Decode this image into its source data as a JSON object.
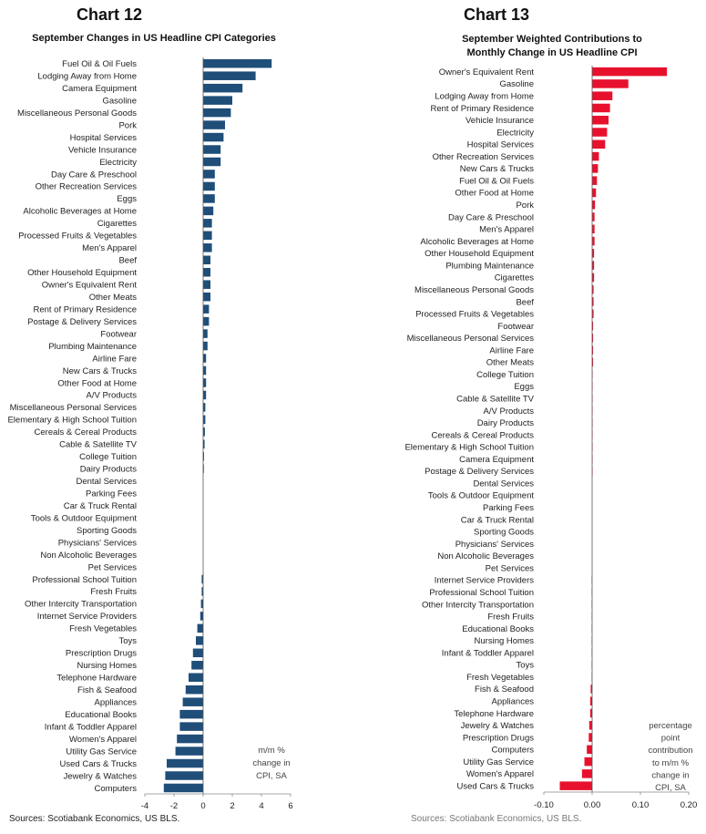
{
  "source": "Sources: Scotiabank Economics, US BLS.",
  "chart_data": [
    {
      "type": "bar",
      "orientation": "horizontal",
      "heading": "Chart 12",
      "title": "September Changes in US Headline CPI Categories",
      "unit_note": [
        "m/m %",
        "change in",
        "CPI, SA"
      ],
      "xlim": [
        -4,
        6
      ],
      "xticks": [
        -4,
        -2,
        0,
        2,
        4,
        6
      ],
      "bar_color": "#1f4e79",
      "categories": [
        "Fuel Oil & Oil Fuels",
        "Lodging Away from Home",
        "Camera Equipment",
        "Gasoline",
        "Miscellaneous Personal Goods",
        "Pork",
        "Hospital Services",
        "Vehicle Insurance",
        "Electricity",
        "Day Care & Preschool",
        "Other Recreation Services",
        "Eggs",
        "Alcoholic Beverages at Home",
        "Cigarettes",
        "Processed Fruits & Vegetables",
        "Men's Apparel",
        "Beef",
        "Other Household Equipment",
        "Owner's Equivalent Rent",
        "Other Meats",
        "Rent of Primary Residence",
        "Postage & Delivery Services",
        "Footwear",
        "Plumbing Maintenance",
        "Airline Fare",
        "New Cars & Trucks",
        "Other Food at Home",
        "A/V Products",
        "Miscellaneous Personal Services",
        "Elementary & High School Tuition",
        "Cereals & Cereal Products",
        "Cable & Satellite TV",
        "College Tuition",
        "Dairy Products",
        "Dental Services",
        "Parking Fees",
        "Car & Truck Rental",
        "Tools & Outdoor Equipment",
        "Sporting Goods",
        "Physicians' Services",
        "Non Alcoholic Beverages",
        "Pet Services",
        "Professional School Tuition",
        "Fresh Fruits",
        "Other Intercity Transportation",
        "Internet Service Providers",
        "Fresh Vegetables",
        "Toys",
        "Prescription Drugs",
        "Nursing Homes",
        "Telephone Hardware",
        "Fish & Seafood",
        "Appliances",
        "Educational Books",
        "Infant & Toddler Apparel",
        "Women's Apparel",
        "Utility Gas Service",
        "Used Cars & Trucks",
        "Jewelry & Watches",
        "Computers"
      ],
      "values": [
        4.7,
        3.6,
        2.7,
        2.0,
        1.9,
        1.5,
        1.4,
        1.2,
        1.2,
        0.8,
        0.8,
        0.8,
        0.7,
        0.6,
        0.6,
        0.6,
        0.5,
        0.5,
        0.5,
        0.5,
        0.4,
        0.4,
        0.3,
        0.3,
        0.2,
        0.2,
        0.2,
        0.2,
        0.15,
        0.15,
        0.12,
        0.1,
        0.06,
        0.05,
        0,
        0,
        0,
        0,
        0,
        0,
        0,
        0,
        -0.1,
        -0.1,
        -0.15,
        -0.2,
        -0.4,
        -0.5,
        -0.7,
        -0.8,
        -1.0,
        -1.2,
        -1.4,
        -1.6,
        -1.6,
        -1.8,
        -1.9,
        -2.5,
        -2.6,
        -2.7
      ]
    },
    {
      "type": "bar",
      "orientation": "horizontal",
      "heading": "Chart 13",
      "title": "September Weighted Contributions to Monthly Change in US Headline CPI",
      "unit_note": [
        "percentage",
        "point",
        "contribution",
        "to m/m %",
        "change in",
        "CPI, SA"
      ],
      "xlim": [
        -0.1,
        0.2
      ],
      "xticks": [
        "-0.10",
        "0.00",
        "0.10",
        "0.20"
      ],
      "bar_color": "#e8112d",
      "categories": [
        "Owner's Equivalent Rent",
        "Gasoline",
        "Lodging Away from Home",
        "Rent of Primary Residence",
        "Vehicle Insurance",
        "Electricity",
        "Hospital Services",
        "Other Recreation Services",
        "New Cars & Trucks",
        "Fuel Oil & Oil Fuels",
        "Other Food at Home",
        "Pork",
        "Day Care & Preschool",
        "Men's Apparel",
        "Alcoholic Beverages at Home",
        "Other Household Equipment",
        "Plumbing Maintenance",
        "Cigarettes",
        "Miscellaneous Personal Goods",
        "Beef",
        "Processed Fruits & Vegetables",
        "Footwear",
        "Miscellaneous Personal Services",
        "Airline Fare",
        "Other Meats",
        "College Tuition",
        "Eggs",
        "Cable & Satellite TV",
        "A/V Products",
        "Dairy Products",
        "Cereals & Cereal Products",
        "Elementary & High School Tuition",
        "Camera Equipment",
        "Postage & Delivery Services",
        "Dental Services",
        "Tools & Outdoor Equipment",
        "Parking Fees",
        "Car & Truck Rental",
        "Sporting Goods",
        "Physicians' Services",
        "Non Alcoholic Beverages",
        "Pet Services",
        "Internet Service Providers",
        "Professional School Tuition",
        "Other Intercity Transportation",
        "Fresh Fruits",
        "Educational Books",
        "Nursing Homes",
        "Infant & Toddler Apparel",
        "Toys",
        "Fresh Vegetables",
        "Fish & Seafood",
        "Appliances",
        "Telephone Hardware",
        "Jewelry & Watches",
        "Prescription Drugs",
        "Computers",
        "Utility Gas Service",
        "Women's Apparel",
        "Used Cars & Trucks"
      ],
      "values": [
        0.155,
        0.075,
        0.042,
        0.037,
        0.034,
        0.031,
        0.027,
        0.014,
        0.012,
        0.01,
        0.008,
        0.006,
        0.005,
        0.005,
        0.005,
        0.004,
        0.004,
        0.004,
        0.003,
        0.003,
        0.003,
        0.002,
        0.002,
        0.002,
        0.002,
        0.001,
        0.001,
        0.001,
        0.001,
        0.001,
        0.001,
        0.001,
        0.001,
        0.001,
        0,
        0,
        0,
        0,
        0,
        0,
        0,
        0,
        -0.001,
        -0.001,
        -0.001,
        -0.001,
        -0.001,
        -0.001,
        -0.001,
        -0.001,
        -0.001,
        -0.003,
        -0.004,
        -0.004,
        -0.006,
        -0.007,
        -0.011,
        -0.016,
        -0.021,
        -0.067
      ]
    }
  ]
}
